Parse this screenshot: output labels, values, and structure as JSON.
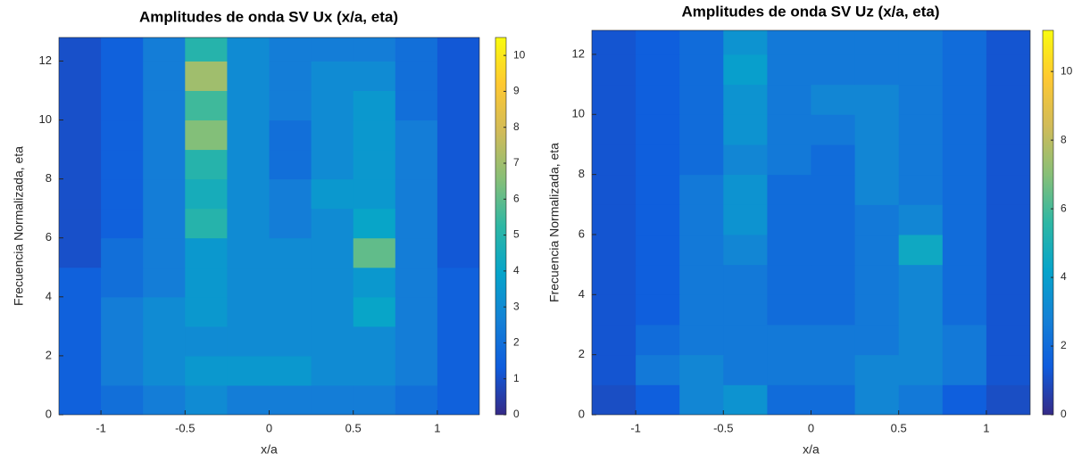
{
  "chart_data": [
    {
      "type": "heatmap",
      "title": "Amplitudes de onda SV Ux (x/a, eta)",
      "xlabel": "x/a",
      "ylabel": "Frecuencia Normalizada, eta",
      "colormap": "parula",
      "x": [
        -1.125,
        -0.875,
        -0.625,
        -0.375,
        -0.125,
        0.125,
        0.375,
        0.625,
        0.875,
        1.125
      ],
      "y": [
        0.5,
        1.5,
        2.5,
        3.5,
        4.5,
        5.5,
        6.5,
        7.5,
        8.5,
        9.5,
        10.5,
        11.5,
        12.5
      ],
      "z": [
        [
          1.5,
          2,
          2.5,
          3,
          2.5,
          2.5,
          2.5,
          2.5,
          2,
          1.5
        ],
        [
          1.5,
          2.5,
          3,
          3.5,
          3.5,
          3.5,
          3,
          3,
          2.5,
          1.5
        ],
        [
          1.5,
          2.5,
          3,
          3,
          3,
          3,
          3,
          3,
          2.5,
          1.5
        ],
        [
          1.5,
          2.5,
          3,
          3.5,
          3,
          3,
          3,
          4,
          2.5,
          1.5
        ],
        [
          1.5,
          2,
          2.5,
          3.5,
          3,
          3,
          3,
          3.5,
          2.5,
          1.5
        ],
        [
          1,
          2,
          2.5,
          3.5,
          3,
          3,
          3,
          6,
          2.5,
          1.2
        ],
        [
          1,
          1.5,
          2.5,
          5,
          3,
          2.5,
          3,
          4,
          2.5,
          1.2
        ],
        [
          1,
          1.5,
          2.5,
          4.5,
          3,
          2.5,
          3.5,
          3.5,
          2.5,
          1.2
        ],
        [
          1,
          1.5,
          2.5,
          5,
          3,
          2,
          3,
          3.5,
          2.5,
          1.2
        ],
        [
          1,
          1.5,
          2.5,
          6.5,
          3,
          2,
          3,
          3.5,
          2.5,
          1.2
        ],
        [
          1,
          1.5,
          2.5,
          5.5,
          3,
          2.5,
          3,
          3.5,
          2,
          1.2
        ],
        [
          1,
          1.5,
          2.5,
          7,
          3,
          2.5,
          3,
          3,
          2,
          1.2
        ],
        [
          1,
          1.5,
          2.5,
          5,
          3,
          2.5,
          2.5,
          2.5,
          2,
          1.2
        ]
      ],
      "xlim": [
        -1.25,
        1.25
      ],
      "xticks": [
        -1,
        -0.5,
        0,
        0.5,
        1
      ],
      "ylim": [
        0,
        12.8
      ],
      "yticks": [
        0,
        2,
        4,
        6,
        8,
        10,
        12
      ],
      "clim": [
        0,
        10.5
      ],
      "cticks": [
        0,
        1,
        2,
        3,
        4,
        5,
        6,
        7,
        8,
        9,
        10
      ]
    },
    {
      "type": "heatmap",
      "title": "Amplitudes de onda SV Uz (x/a, eta)",
      "xlabel": "x/a",
      "ylabel": "Frecuencia Normalizada, eta",
      "colormap": "parula",
      "x": [
        -1.125,
        -0.875,
        -0.625,
        -0.375,
        -0.125,
        0.125,
        0.375,
        0.625,
        0.875,
        1.125
      ],
      "y": [
        0.5,
        1.5,
        2.5,
        3.5,
        4.5,
        5.5,
        6.5,
        7.5,
        8.5,
        9.5,
        10.5,
        11.5,
        12.5
      ],
      "z": [
        [
          1,
          1.5,
          3,
          3.5,
          2,
          2,
          3,
          2.5,
          1.5,
          1
        ],
        [
          1.2,
          2.5,
          3,
          2.5,
          2.5,
          2.5,
          3,
          3,
          2.5,
          1.2
        ],
        [
          1.2,
          2,
          2.5,
          2.5,
          2.5,
          2.5,
          2.5,
          3,
          2.5,
          1.2
        ],
        [
          1.2,
          1.5,
          2.5,
          2.5,
          2,
          2,
          2.5,
          3,
          2,
          1.2
        ],
        [
          1.2,
          1.5,
          2.5,
          2.5,
          2,
          2,
          2.5,
          3,
          2,
          1.2
        ],
        [
          1.2,
          1.5,
          2.5,
          3,
          2,
          2,
          2.5,
          4.5,
          2,
          1.2
        ],
        [
          1.2,
          1.5,
          2.5,
          3.5,
          2,
          2,
          2.5,
          3,
          2,
          1.2
        ],
        [
          1.2,
          1.5,
          2.5,
          3.5,
          2,
          2,
          3,
          2.5,
          2,
          1.2
        ],
        [
          1.2,
          1.5,
          2,
          3,
          2.5,
          2,
          3,
          2.5,
          2,
          1.2
        ],
        [
          1.2,
          1.5,
          2,
          3.5,
          2.5,
          2.5,
          3,
          2.5,
          2,
          1.2
        ],
        [
          1.2,
          1.5,
          2,
          3.5,
          2.5,
          3,
          3,
          2.5,
          2,
          1.2
        ],
        [
          1.2,
          1.5,
          2,
          4,
          2.5,
          2.5,
          2.5,
          2.5,
          2,
          1.2
        ],
        [
          1.2,
          1.5,
          2,
          3.5,
          2.5,
          2.5,
          2.5,
          2.5,
          2,
          1.2
        ]
      ],
      "xlim": [
        -1.25,
        1.25
      ],
      "xticks": [
        -1,
        -0.5,
        0,
        0.5,
        1
      ],
      "ylim": [
        0,
        12.8
      ],
      "yticks": [
        0,
        2,
        4,
        6,
        8,
        10,
        12
      ],
      "clim": [
        0,
        11.2
      ],
      "cticks": [
        0,
        2,
        4,
        6,
        8,
        10
      ]
    }
  ]
}
